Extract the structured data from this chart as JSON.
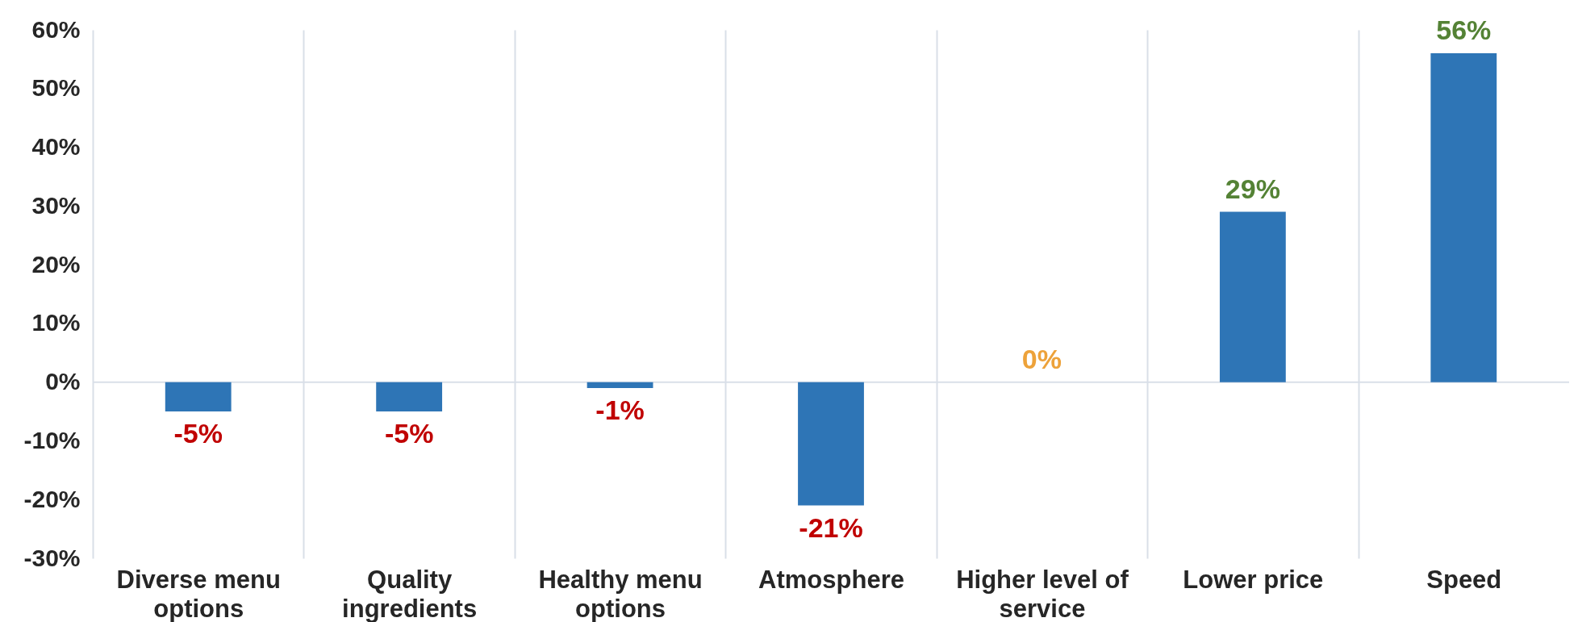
{
  "chart_data": {
    "type": "bar",
    "categories": [
      "Diverse menu options",
      "Quality ingredients",
      "Healthy menu options",
      "Atmosphere",
      "Higher level of service",
      "Lower price",
      "Speed"
    ],
    "values": [
      -5,
      -5,
      -1,
      -21,
      0,
      29,
      56
    ],
    "color": "#2e75b6",
    "value_labels": [
      "-5%",
      "-5%",
      "-1%",
      "-21%",
      "0%",
      "29%",
      "56%"
    ],
    "ylim": [
      -30,
      60
    ],
    "yticks": [
      {
        "value": -30,
        "label": "-30%"
      },
      {
        "value": -20,
        "label": "-20%"
      },
      {
        "value": -10,
        "label": "-10%"
      },
      {
        "value": 0,
        "label": "0%"
      },
      {
        "value": 10,
        "label": "10%"
      },
      {
        "value": 20,
        "label": "20%"
      },
      {
        "value": 30,
        "label": "30%"
      },
      {
        "value": 40,
        "label": "40%"
      },
      {
        "value": 50,
        "label": "50%"
      },
      {
        "value": 60,
        "label": "60%"
      }
    ],
    "grid": "x",
    "ref_lines": [
      {
        "axis": "y",
        "value": 0,
        "color": "#d9dfe8"
      }
    ]
  }
}
